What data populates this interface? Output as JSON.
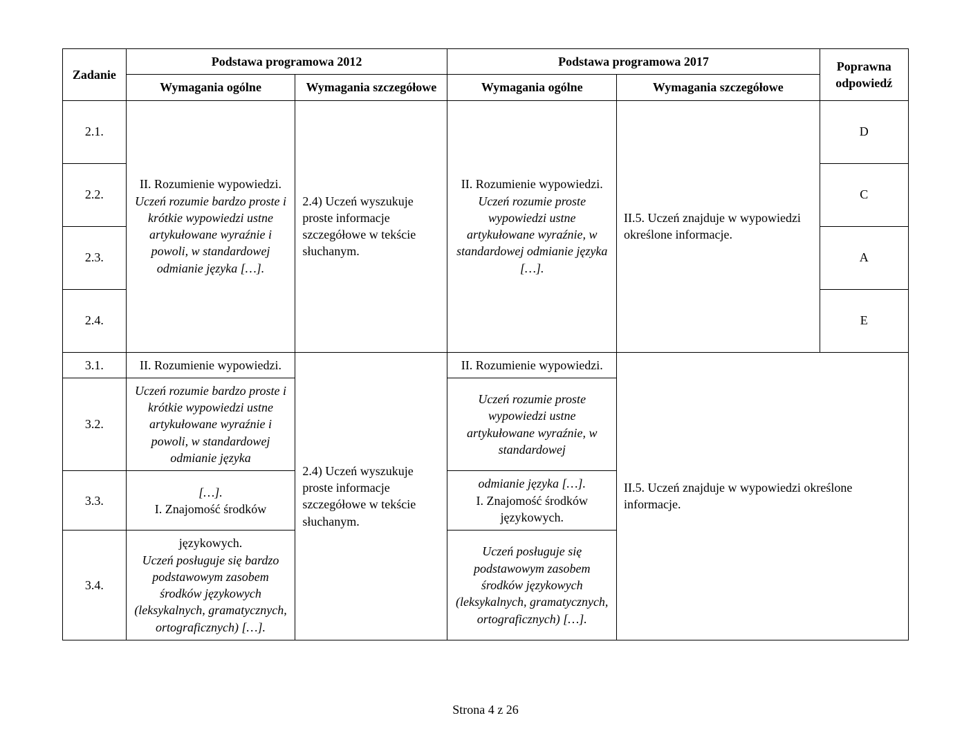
{
  "headers": {
    "zadanie": "Zadanie",
    "pp2012": "Podstawa programowa 2012",
    "pp2017": "Podstawa programowa 2017",
    "poprawna": "Poprawna odpowiedź",
    "wymagania_ogolne": "Wymagania ogólne",
    "wymagania_szczegolowe": "Wymagania szczegółowe"
  },
  "group1": {
    "tasks": [
      "2.1.",
      "2.2.",
      "2.3.",
      "2.4."
    ],
    "w2012_ogolne_title": "II. Rozumienie wypowiedzi.",
    "w2012_ogolne_body": "Uczeń rozumie bardzo proste i krótkie wypowiedzi ustne artykułowane wyraźnie i powoli, w standardowej odmianie języka […].",
    "w2012_szcz": "2.4) Uczeń wyszukuje proste informacje szczegółowe w tekście słuchanym.",
    "w2017_ogolne_title": "II. Rozumienie wypowiedzi.",
    "w2017_ogolne_body": "Uczeń rozumie proste wypowiedzi ustne artykułowane wyraźnie, w standardowej odmianie języka […].",
    "w2017_szcz": "II.5. Uczeń znajduje w wypowiedzi określone informacje.",
    "answers": [
      "D",
      "C",
      "A",
      "E"
    ]
  },
  "group2": {
    "tasks": [
      "3.1.",
      "3.2.",
      "3.3.",
      "3.4."
    ],
    "w2012_szcz": "2.4) Uczeń wyszukuje proste informacje szczegółowe w tekście słuchanym.",
    "w2017_szcz": "II.5. Uczeń znajduje w wypowiedzi określone informacje.",
    "row1_2012_title": "II. Rozumienie wypowiedzi.",
    "row1_2017_title": "II. Rozumienie wypowiedzi.",
    "row2_2012": "Uczeń rozumie bardzo proste i krótkie wypowiedzi ustne artykułowane wyraźnie i powoli, w standardowej odmianie języka",
    "row2_2017": "Uczeń rozumie proste wypowiedzi ustne artykułowane wyraźnie, w standardowej",
    "row3_2012_a": "[…].",
    "row3_2012_b": "I. Znajomość środków",
    "row3_2017_a": "odmianie języka […].",
    "row3_2017_b": "I. Znajomość środków językowych.",
    "row4_2012_a": "językowych.",
    "row4_2012_b": "Uczeń posługuje się bardzo podstawowym zasobem środków językowych (leksykalnych, gramatycznych, ortograficznych) […].",
    "row4_2017": "Uczeń posługuje się podstawowym zasobem środków językowych (leksykalnych, gramatycznych, ortograficznych) […]."
  },
  "footer": "Strona 4 z 26"
}
